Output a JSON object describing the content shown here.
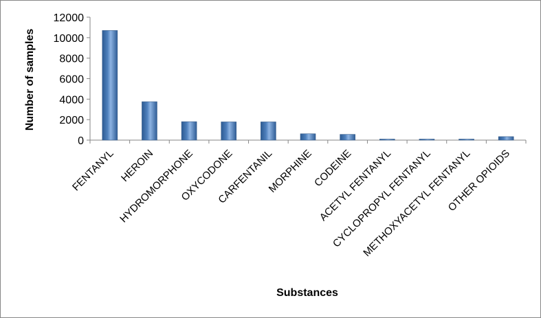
{
  "chart_data": {
    "type": "bar",
    "title": "",
    "xlabel": "Substances",
    "ylabel": "Number of samples",
    "ylim": [
      0,
      12000
    ],
    "yticks": [
      0,
      2000,
      4000,
      6000,
      8000,
      10000,
      12000
    ],
    "grid": false,
    "legend": "none",
    "bar_color": "#4f81bd",
    "categories": [
      "FENTANYL",
      "HEROIN",
      "HYDROMORPHONE",
      "OXYCODONE",
      "CARFENTANIL",
      "MORPHINE",
      "CODEINE",
      "ACETYL FENTANYL",
      "CYCLOPROPYL FENTANYL",
      "METHOXYACETYL FENTANYL",
      "OTHER OPIOIDS"
    ],
    "values": [
      10700,
      3750,
      1800,
      1780,
      1780,
      620,
      560,
      60,
      60,
      60,
      340
    ]
  }
}
